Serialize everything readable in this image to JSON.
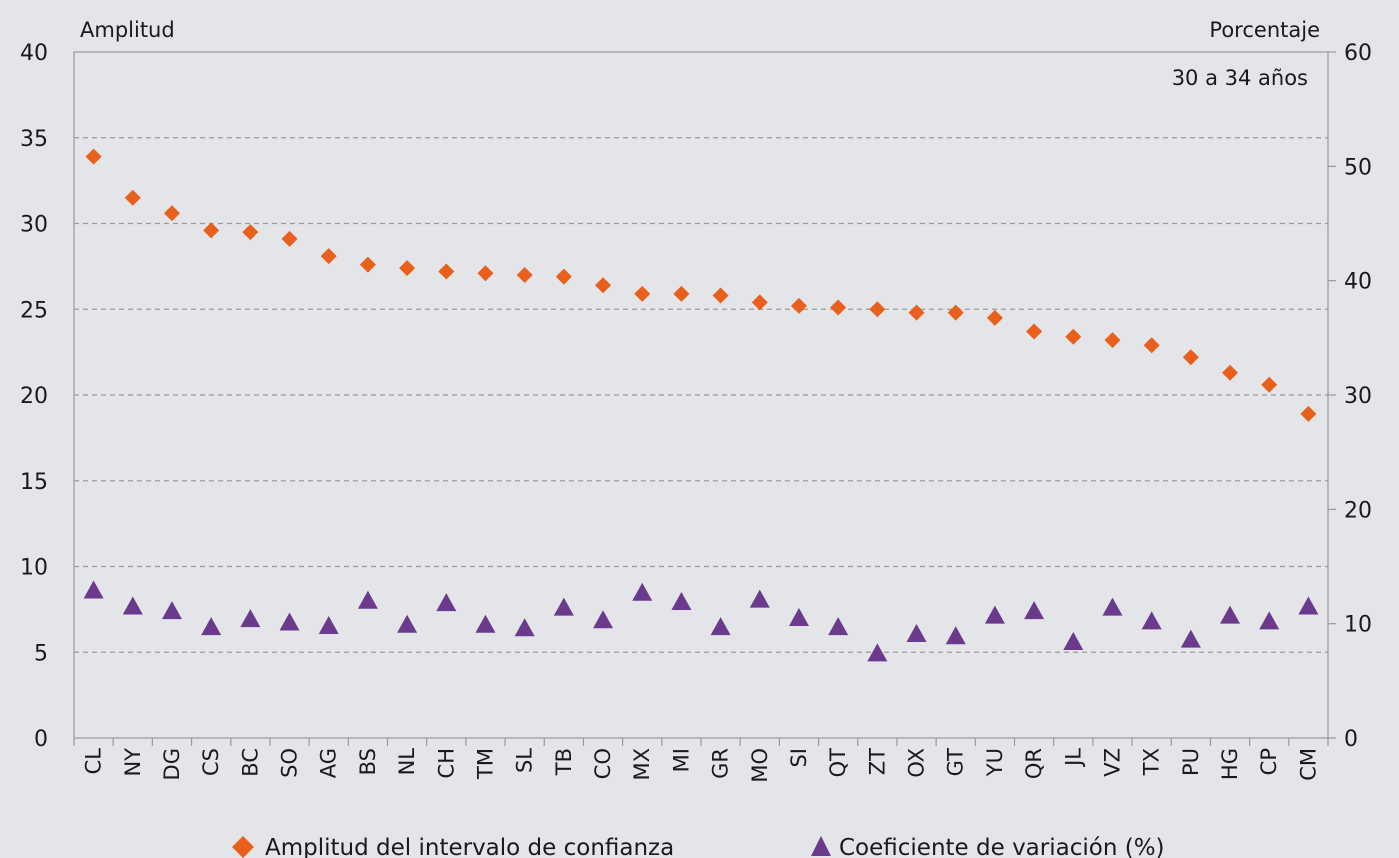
{
  "chart_data": {
    "type": "scatter",
    "annotation": "30 a 34 años",
    "ylabel_left": "Amplitud",
    "ylabel_right": "Porcentaje",
    "ylim_left": [
      0,
      40
    ],
    "ylim_right": [
      0,
      60
    ],
    "yticks_left": [
      0,
      5,
      10,
      15,
      20,
      25,
      30,
      35,
      40
    ],
    "yticks_right": [
      0,
      10,
      20,
      30,
      40,
      50,
      60
    ],
    "grid": true,
    "legend_position": "bottom",
    "categories": [
      "CL",
      "NY",
      "DG",
      "CS",
      "BC",
      "SO",
      "AG",
      "BS",
      "NL",
      "CH",
      "TM",
      "SL",
      "TB",
      "CO",
      "MX",
      "MI",
      "GR",
      "MO",
      "SI",
      "QT",
      "ZT",
      "OX",
      "GT",
      "YU",
      "QR",
      "JL",
      "VZ",
      "TX",
      "PU",
      "HG",
      "CP",
      "CM"
    ],
    "series": [
      {
        "name": "Amplitud del intervalo de confianza",
        "axis": "left",
        "marker": "diamond",
        "color": "#e8601c",
        "values": [
          33.9,
          31.5,
          30.6,
          29.6,
          29.5,
          29.1,
          28.1,
          27.6,
          27.4,
          27.2,
          27.1,
          27.0,
          26.9,
          26.4,
          25.9,
          25.9,
          25.8,
          25.4,
          25.2,
          25.1,
          25.0,
          24.8,
          24.8,
          24.5,
          23.7,
          23.4,
          23.2,
          22.9,
          22.2,
          21.3,
          20.6,
          18.9
        ]
      },
      {
        "name": "Coeficiente de variación (%)",
        "axis": "right",
        "marker": "triangle",
        "color": "#6b3a8c",
        "values": [
          12.9,
          11.5,
          11.1,
          9.7,
          10.4,
          10.1,
          9.8,
          12.0,
          9.9,
          11.8,
          9.9,
          9.6,
          11.4,
          10.3,
          12.7,
          11.9,
          9.7,
          12.1,
          10.5,
          9.7,
          7.4,
          9.1,
          8.9,
          10.7,
          11.1,
          8.4,
          11.4,
          10.2,
          8.6,
          10.7,
          10.2,
          11.5
        ]
      }
    ]
  }
}
